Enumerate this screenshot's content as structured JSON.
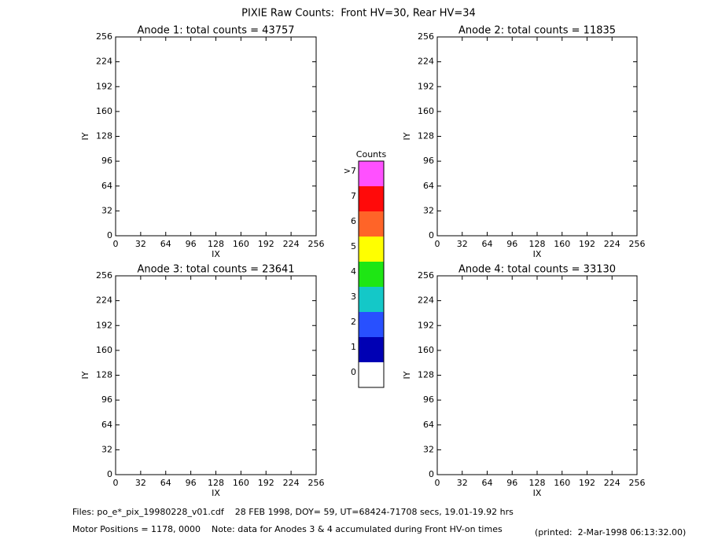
{
  "title": "PIXIE Raw Counts:  Front HV=30, Rear HV=34",
  "chart_data": [
    {
      "type": "heatmap",
      "title": "Anode 1: total counts = 43757",
      "xlabel": "IX",
      "ylabel": "IY",
      "xlim": [
        0,
        256
      ],
      "ylim": [
        0,
        256
      ],
      "xticks": [
        0,
        32,
        64,
        96,
        128,
        160,
        192,
        224,
        256
      ],
      "yticks": [
        0,
        32,
        64,
        96,
        128,
        160,
        192,
        224,
        256
      ]
    },
    {
      "type": "heatmap",
      "title": "Anode 2: total counts = 11835",
      "xlabel": "IX",
      "ylabel": "IY",
      "xlim": [
        0,
        256
      ],
      "ylim": [
        0,
        256
      ],
      "xticks": [
        0,
        32,
        64,
        96,
        128,
        160,
        192,
        224,
        256
      ],
      "yticks": [
        0,
        32,
        64,
        96,
        128,
        160,
        192,
        224,
        256
      ]
    },
    {
      "type": "heatmap",
      "title": "Anode 3: total counts = 23641",
      "xlabel": "IX",
      "ylabel": "IY",
      "xlim": [
        0,
        256
      ],
      "ylim": [
        0,
        256
      ],
      "xticks": [
        0,
        32,
        64,
        96,
        128,
        160,
        192,
        224,
        256
      ],
      "yticks": [
        0,
        32,
        64,
        96,
        128,
        160,
        192,
        224,
        256
      ]
    },
    {
      "type": "heatmap",
      "title": "Anode 4: total counts = 33130",
      "xlabel": "IX",
      "ylabel": "IY",
      "xlim": [
        0,
        256
      ],
      "ylim": [
        0,
        256
      ],
      "xticks": [
        0,
        32,
        64,
        96,
        128,
        160,
        192,
        224,
        256
      ],
      "yticks": [
        0,
        32,
        64,
        96,
        128,
        160,
        192,
        224,
        256
      ]
    },
    {
      "type": "colorbar",
      "title": "Counts",
      "categories": [
        "0",
        "1",
        "2",
        "3",
        "4",
        "5",
        "6",
        "7",
        ">7"
      ],
      "colors": [
        "#ffffff",
        "#0000b4",
        "#2850ff",
        "#14c8c8",
        "#1ee614",
        "#ffff00",
        "#ff6428",
        "#ff0a0a",
        "#ff50ff"
      ]
    }
  ],
  "footer": [
    "Files: po_e*_pix_19980228_v01.cdf    28 FEB 1998, DOY= 59, UT=68424-71708 secs, 19.01-19.92 hrs",
    "Motor Positions = 1178, 0000    Note: data for Anodes 3 & 4 accumulated during Front HV-on times",
    "(printed:  2-Mar-1998 06:13:32.00)"
  ]
}
